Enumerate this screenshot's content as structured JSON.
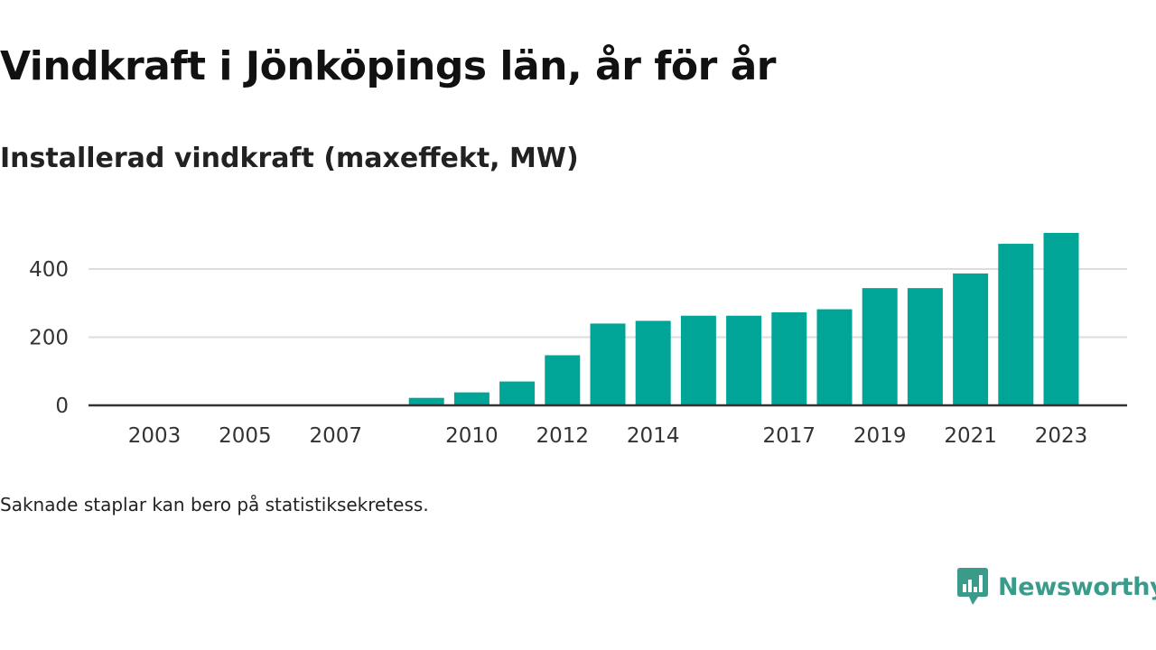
{
  "title": "Vindkraft i Jönköpings län, år för år",
  "subtitle": "Installerad vindkraft (maxeffekt, MW)",
  "footnote": "Saknade staplar kan bero på statistiksekretess.",
  "brand": {
    "name": "Newsworthy",
    "color": "#3a9b8a"
  },
  "colors": {
    "bar": "#00a598",
    "grid": "#dddddd",
    "axis": "#333333"
  },
  "chart_data": {
    "type": "bar",
    "x": [
      2003,
      2004,
      2005,
      2006,
      2007,
      2008,
      2009,
      2010,
      2011,
      2012,
      2013,
      2014,
      2015,
      2016,
      2017,
      2018,
      2019,
      2020,
      2021,
      2022,
      2023
    ],
    "values": [
      null,
      null,
      null,
      null,
      null,
      null,
      22,
      38,
      70,
      147,
      240,
      248,
      263,
      263,
      273,
      282,
      344,
      344,
      387,
      474,
      506
    ],
    "x_tick_labels": [
      "2003",
      "2005",
      "2007",
      "2010",
      "2012",
      "2014",
      "2017",
      "2019",
      "2021",
      "2023"
    ],
    "y_ticks": [
      0,
      200,
      400
    ],
    "ylim": [
      0,
      530
    ],
    "xlabel": "",
    "ylabel": "",
    "grid": true,
    "legend": "none"
  }
}
